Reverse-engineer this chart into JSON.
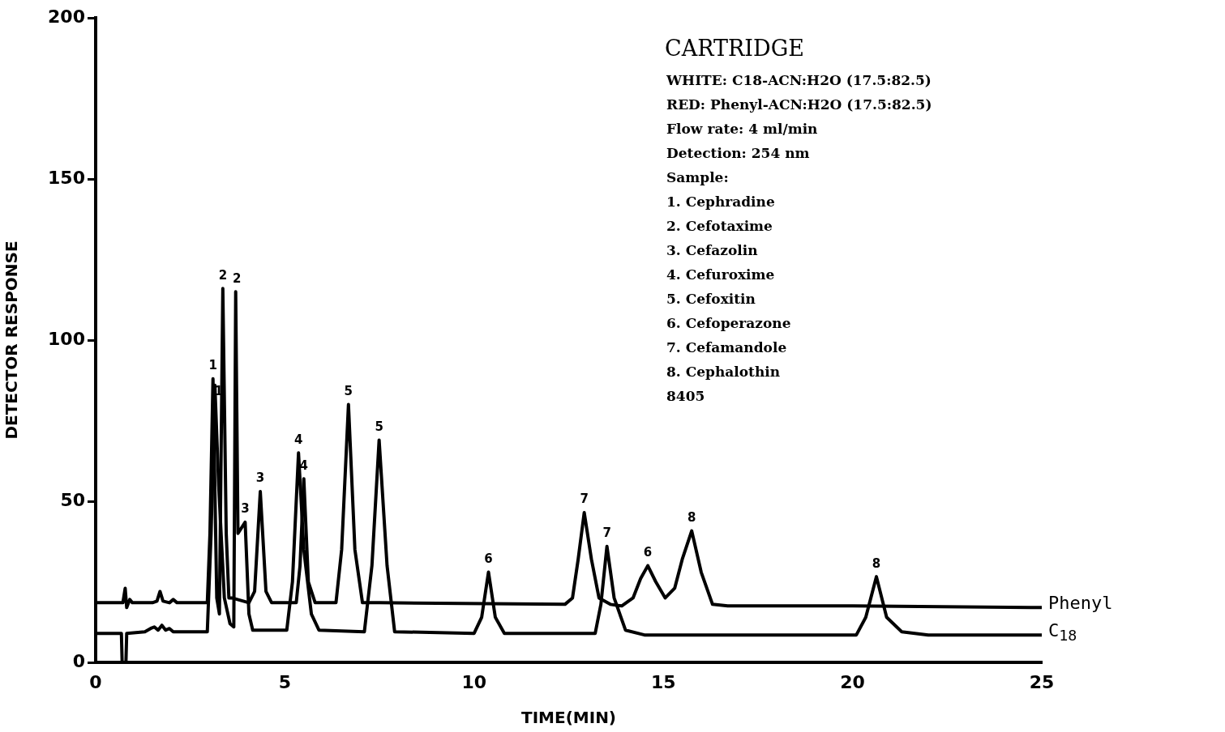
{
  "chart_data": {
    "type": "line",
    "title": "CARTRIDGE",
    "xlabel": "TIME(MIN)",
    "ylabel": "DETECTOR RESPONSE",
    "xlim": [
      0,
      25
    ],
    "xticks": [
      0,
      5,
      10,
      15,
      20,
      25
    ],
    "ylim": [
      0,
      200
    ],
    "yticks": [
      0,
      50,
      100,
      150,
      200
    ],
    "grid": false,
    "legend": false,
    "marker": "none",
    "line_style": "solid",
    "series": [
      {
        "name": "Phenyl",
        "color": "#000000",
        "x": [
          0,
          0.72,
          0.78,
          0.82,
          0.9,
          0.97,
          1.5,
          1.62,
          1.7,
          1.78,
          1.95,
          2.05,
          2.15,
          2.95,
          3.02,
          3.1,
          3.2,
          3.27,
          3.36,
          3.45,
          3.52,
          3.6,
          3.9,
          4.05,
          4.2,
          4.35,
          4.5,
          4.65,
          5.3,
          5.4,
          5.5,
          5.62,
          5.8,
          6.35,
          6.5,
          6.68,
          6.85,
          7.05,
          7.5,
          12.4,
          12.6,
          12.75,
          12.91,
          13.1,
          13.3,
          13.6,
          13.9,
          14.2,
          14.4,
          14.59,
          14.8,
          15.05,
          15.3,
          15.5,
          15.75,
          16.0,
          16.3,
          16.7,
          20,
          25
        ],
        "values": [
          18.5,
          18.5,
          23,
          17,
          19.5,
          18.5,
          18.5,
          19,
          22,
          19,
          18.5,
          19.5,
          18.5,
          18.5,
          40,
          88,
          20,
          15,
          116,
          40,
          20,
          20,
          19,
          18.5,
          22,
          53,
          22,
          18.5,
          18.5,
          30,
          57,
          25,
          18.5,
          18.5,
          35,
          80,
          35,
          18.5,
          18.5,
          18,
          20,
          32,
          46.5,
          32,
          20,
          18,
          17.5,
          20,
          26,
          30,
          25,
          20,
          23,
          32,
          40.8,
          28,
          18,
          17.5,
          17.5,
          17
        ]
      },
      {
        "name": "C$_{18}$",
        "color": "#000000",
        "x": [
          0,
          0.68,
          0.7,
          0.8,
          0.82,
          1.3,
          1.45,
          1.55,
          1.65,
          1.75,
          1.85,
          1.95,
          2.05,
          2.95,
          3.05,
          3.15,
          3.25,
          3.4,
          3.55,
          3.65,
          3.7,
          3.76,
          3.95,
          4.05,
          4.15,
          5.05,
          5.2,
          5.36,
          5.5,
          5.7,
          5.9,
          7.1,
          7.3,
          7.49,
          7.7,
          7.9,
          10.0,
          10.2,
          10.38,
          10.56,
          10.8,
          13.2,
          13.35,
          13.51,
          13.7,
          14.0,
          14.5,
          20.1,
          20.35,
          20.63,
          20.9,
          21.3,
          22,
          25
        ],
        "values": [
          9,
          9,
          0,
          0,
          9,
          9.5,
          10.5,
          11,
          10,
          11.5,
          10,
          10.5,
          9.5,
          9.5,
          40,
          86,
          55,
          20,
          12,
          11,
          115,
          40,
          43.5,
          15,
          10,
          10,
          25,
          65,
          35,
          15,
          10,
          9.5,
          30,
          69,
          30,
          9.5,
          9,
          14,
          28,
          14,
          9,
          9,
          18,
          36,
          20,
          10,
          8.5,
          8.5,
          14,
          26.6,
          14,
          9.5,
          8.5,
          8.5
        ]
      }
    ],
    "annotations": [
      {
        "text": "1",
        "x": 3.1,
        "y": 88
      },
      {
        "text": "1",
        "x": 3.25,
        "y": 80
      },
      {
        "text": "2",
        "x": 3.36,
        "y": 116
      },
      {
        "text": "2",
        "x": 3.73,
        "y": 115
      },
      {
        "text": "3",
        "x": 3.95,
        "y": 43.5
      },
      {
        "text": "3",
        "x": 4.35,
        "y": 53
      },
      {
        "text": "4",
        "x": 5.36,
        "y": 65
      },
      {
        "text": "4",
        "x": 5.5,
        "y": 57
      },
      {
        "text": "5",
        "x": 6.68,
        "y": 80
      },
      {
        "text": "5",
        "x": 7.49,
        "y": 69
      },
      {
        "text": "6",
        "x": 10.38,
        "y": 28
      },
      {
        "text": "7",
        "x": 12.91,
        "y": 46.5
      },
      {
        "text": "7",
        "x": 13.51,
        "y": 36
      },
      {
        "text": "6",
        "x": 14.59,
        "y": 30
      },
      {
        "text": "8",
        "x": 15.75,
        "y": 40.8
      },
      {
        "text": "8",
        "x": 20.63,
        "y": 26.6
      },
      "WHITE: C18-ACN:H2O (17.5:82.5)",
      "RED: Phenyl-ACN:H2O (17.5:82.5)",
      "Flow rate: 4 ml/min",
      "Detection: 254 nm",
      "Sample:",
      "1. Cephradine",
      "2. Cefotaxime",
      "3. Cefazolin",
      "4. Cefuroxime",
      "5. Cefoxitin",
      "6. Cefoperazone",
      "7. Cefamandole",
      "8. Cephalothin",
      "8405"
    ]
  }
}
